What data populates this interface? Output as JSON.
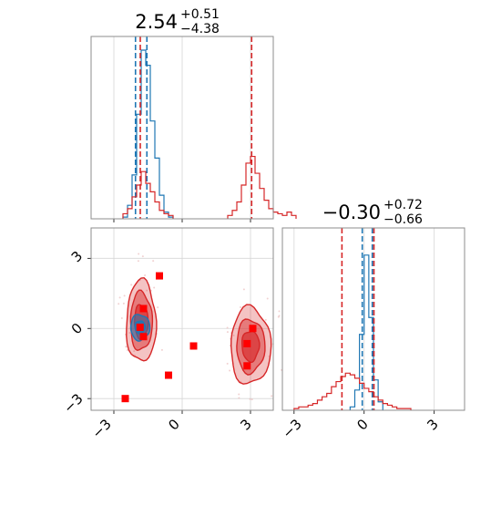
{
  "chart_data": [
    {
      "type": "histogram",
      "panel": "top-left marginal",
      "title_value": "2.54",
      "title_plus": "+0.51",
      "title_minus": "−4.38",
      "xlim": [
        -4.0,
        4.0
      ],
      "grid": true,
      "bin_width": 0.2,
      "series": [
        {
          "color": "#1f77b4",
          "bin_start": -2.6,
          "heights": [
            0.01,
            0.08,
            0.26,
            0.62,
            1.0,
            0.91,
            0.58,
            0.36,
            0.14,
            0.04,
            0.01
          ],
          "quantile_lines": [
            -2.05,
            -1.55
          ]
        },
        {
          "color": "#d62728",
          "bin_start": -2.6,
          "heights": [
            0.03,
            0.06,
            0.13,
            0.2,
            0.28,
            0.21,
            0.16,
            0.1,
            0.05,
            0.03,
            0.02
          ],
          "quantile_lines": [
            -1.84,
            3.05
          ]
        },
        {
          "color": "#d62728",
          "bin_start": 2.0,
          "heights": [
            0.02,
            0.05,
            0.1,
            0.2,
            0.33,
            0.37,
            0.27,
            0.18,
            0.11,
            0.06,
            0.04,
            0.03,
            0.02,
            0.04,
            0.02
          ],
          "quantile_lines": []
        }
      ]
    },
    {
      "type": "contour-scatter",
      "panel": "bottom-left joint",
      "xlim": [
        -4.0,
        4.0
      ],
      "ylim": [
        -3.5,
        4.3
      ],
      "xticks": [
        "−3",
        "0",
        "3"
      ],
      "yticks": [
        "−3",
        "0",
        "3"
      ],
      "grid": true,
      "blobs": [
        {
          "color": "#d62728",
          "cx": -1.8,
          "cy": 0.3,
          "rx_levels": [
            0.65,
            0.48,
            0.3
          ],
          "ry_levels": [
            1.75,
            1.25,
            0.72
          ]
        },
        {
          "color": "#d62728",
          "cx": 3.0,
          "cy": -0.75,
          "rx_levels": [
            0.88,
            0.62,
            0.38
          ],
          "ry_levels": [
            1.65,
            1.15,
            0.65
          ]
        },
        {
          "color": "#1f77b4",
          "cx": -1.85,
          "cy": 0.05,
          "rx_levels": [
            0.42,
            0.22
          ],
          "ry_levels": [
            0.55,
            0.28
          ]
        }
      ],
      "points": [
        {
          "x": -1.0,
          "y": 2.25
        },
        {
          "x": -1.7,
          "y": 0.85
        },
        {
          "x": -1.85,
          "y": 0.05
        },
        {
          "x": -1.7,
          "y": -0.35
        },
        {
          "x": 0.5,
          "y": -0.75
        },
        {
          "x": -0.6,
          "y": -2.0
        },
        {
          "x": -2.5,
          "y": -3.0
        },
        {
          "x": 3.1,
          "y": 0.0
        },
        {
          "x": 2.85,
          "y": -0.65
        },
        {
          "x": 2.85,
          "y": -1.6
        }
      ]
    },
    {
      "type": "histogram",
      "panel": "bottom-right marginal",
      "title_value": "−0.30",
      "title_plus": "+0.72",
      "title_minus": "−0.66",
      "xlim": [
        -3.5,
        4.3
      ],
      "xticks": [
        "−3",
        "0",
        "3"
      ],
      "grid": true,
      "bin_width": 0.2,
      "series": [
        {
          "color": "#1f77b4",
          "bin_start": -0.6,
          "heights": [
            0.02,
            0.12,
            0.45,
            0.92,
            0.55,
            0.18,
            0.05
          ],
          "quantile_lines": [
            -0.08,
            0.35
          ]
        },
        {
          "color": "#d62728",
          "bin_start": -3.0,
          "heights": [
            0.01,
            0.02,
            0.02,
            0.03,
            0.04,
            0.06,
            0.08,
            0.1,
            0.14,
            0.17,
            0.2,
            0.22,
            0.21,
            0.19,
            0.16,
            0.13,
            0.11,
            0.08,
            0.06,
            0.04,
            0.03,
            0.02,
            0.01,
            0.01,
            0.01
          ],
          "quantile_lines": [
            -0.95,
            0.42
          ]
        }
      ]
    }
  ]
}
